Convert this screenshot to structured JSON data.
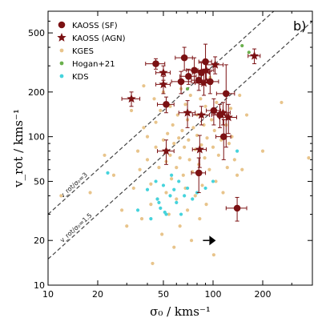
{
  "chart_data": {
    "type": "scatter",
    "panel_tag": "b)",
    "xlabel": "σ₀ / kms⁻¹",
    "ylabel": "v_rot / kms⁻¹",
    "xscale": "log",
    "yscale": "log",
    "xlim": [
      10,
      400
    ],
    "ylim": [
      10,
      700
    ],
    "x_ticks": [
      10,
      20,
      50,
      100,
      200
    ],
    "y_ticks": [
      10,
      20,
      50,
      100,
      200,
      500
    ],
    "grid": false,
    "legend": "top-left",
    "reference_lines": [
      {
        "ratio": 3,
        "label": "v_rot/σ₀=3",
        "style": "dashed"
      },
      {
        "ratio": 1.5,
        "label": "v_rot/σ₀=1.5",
        "style": "dashed"
      }
    ],
    "series": [
      {
        "name": "KGES",
        "marker": "circle-small",
        "color": "#e8c48b",
        "points": [
          [
            12,
            40
          ],
          [
            18,
            42
          ],
          [
            22,
            75
          ],
          [
            25,
            55
          ],
          [
            28,
            32
          ],
          [
            30,
            25
          ],
          [
            32,
            150
          ],
          [
            33,
            45
          ],
          [
            35,
            80
          ],
          [
            36,
            60
          ],
          [
            37,
            28
          ],
          [
            38,
            115
          ],
          [
            38,
            220
          ],
          [
            40,
            70
          ],
          [
            40,
            100
          ],
          [
            42,
            48
          ],
          [
            42,
            35
          ],
          [
            43,
            14
          ],
          [
            44,
            180
          ],
          [
            45,
            125
          ],
          [
            45,
            85
          ],
          [
            46,
            38
          ],
          [
            47,
            62
          ],
          [
            48,
            150
          ],
          [
            49,
            22
          ],
          [
            50,
            95
          ],
          [
            50,
            200
          ],
          [
            52,
            68
          ],
          [
            52,
            42
          ],
          [
            53,
            105
          ],
          [
            54,
            30
          ],
          [
            55,
            75
          ],
          [
            55,
            160
          ],
          [
            56,
            52
          ],
          [
            57,
            120
          ],
          [
            58,
            18
          ],
          [
            58,
            90
          ],
          [
            60,
            62
          ],
          [
            60,
            38
          ],
          [
            61,
            140
          ],
          [
            62,
            98
          ],
          [
            63,
            72
          ],
          [
            63,
            25
          ],
          [
            64,
            210
          ],
          [
            65,
            110
          ],
          [
            66,
            55
          ],
          [
            67,
            85
          ],
          [
            68,
            45
          ],
          [
            68,
            165
          ],
          [
            70,
            32
          ],
          [
            70,
            130
          ],
          [
            71,
            95
          ],
          [
            72,
            70
          ],
          [
            73,
            190
          ],
          [
            74,
            20
          ],
          [
            75,
            58
          ],
          [
            76,
            115
          ],
          [
            78,
            82
          ],
          [
            78,
            40
          ],
          [
            80,
            140
          ],
          [
            80,
            102
          ],
          [
            82,
            65
          ],
          [
            83,
            28
          ],
          [
            84,
            180
          ],
          [
            85,
            88
          ],
          [
            86,
            47
          ],
          [
            88,
            120
          ],
          [
            89,
            72
          ],
          [
            90,
            160
          ],
          [
            91,
            35
          ],
          [
            92,
            98
          ],
          [
            95,
            60
          ],
          [
            96,
            250
          ],
          [
            98,
            130
          ],
          [
            100,
            85
          ],
          [
            101,
            16
          ],
          [
            102,
            110
          ],
          [
            104,
            50
          ],
          [
            105,
            170
          ],
          [
            108,
            75
          ],
          [
            110,
            140
          ],
          [
            112,
            95
          ],
          [
            115,
            42
          ],
          [
            118,
            200
          ],
          [
            120,
            120
          ],
          [
            122,
            62
          ],
          [
            125,
            90
          ],
          [
            128,
            155
          ],
          [
            130,
            100
          ],
          [
            135,
            70
          ],
          [
            140,
            55
          ],
          [
            145,
            190
          ],
          [
            150,
            60
          ],
          [
            160,
            140
          ],
          [
            200,
            80
          ],
          [
            260,
            170
          ],
          [
            380,
            72
          ]
        ]
      },
      {
        "name": "Hogan+21",
        "marker": "circle-small",
        "color": "#6ab04c",
        "points": [
          [
            70,
            210
          ],
          [
            150,
            410
          ],
          [
            165,
            370
          ]
        ]
      },
      {
        "name": "KDS",
        "marker": "circle-small",
        "color": "#45d3dc",
        "points": [
          [
            23,
            57
          ],
          [
            35,
            32
          ],
          [
            40,
            44
          ],
          [
            42,
            28
          ],
          [
            45,
            50
          ],
          [
            46,
            38
          ],
          [
            47,
            36
          ],
          [
            48,
            33
          ],
          [
            50,
            47
          ],
          [
            51,
            31
          ],
          [
            52,
            30
          ],
          [
            55,
            40
          ],
          [
            56,
            55
          ],
          [
            58,
            44
          ],
          [
            60,
            36
          ],
          [
            62,
            50
          ],
          [
            64,
            30
          ],
          [
            67,
            40
          ],
          [
            70,
            45
          ],
          [
            75,
            38
          ],
          [
            80,
            42
          ],
          [
            90,
            45
          ],
          [
            100,
            50
          ],
          [
            140,
            80
          ]
        ]
      },
      {
        "name": "KAOSS (SF)",
        "marker": "circle",
        "color": "#7b1113",
        "points": [
          {
            "x": 45,
            "y": 310,
            "xerr": [
              6,
              6
            ],
            "yerr": [
              25,
              25
            ]
          },
          {
            "x": 52,
            "y": 165,
            "xerr": [
              6,
              6
            ],
            "yerr": [
              20,
              20
            ]
          },
          {
            "x": 64,
            "y": 235,
            "xerr": [
              8,
              10
            ],
            "yerr": [
              40,
              40
            ]
          },
          {
            "x": 67,
            "y": 340,
            "xerr": [
              8,
              8
            ],
            "yerr": [
              60,
              60
            ]
          },
          {
            "x": 71,
            "y": 255,
            "xerr": [
              8,
              8
            ],
            "yerr": [
              30,
              30
            ]
          },
          {
            "x": 77,
            "y": 280,
            "xerr": [
              8,
              8
            ],
            "yerr": [
              50,
              60
            ]
          },
          {
            "x": 82,
            "y": 240,
            "xerr": [
              8,
              10
            ],
            "yerr": [
              35,
              35
            ]
          },
          {
            "x": 85,
            "y": 270,
            "xerr": [
              10,
              10
            ],
            "yerr": [
              45,
              45
            ]
          },
          {
            "x": 90,
            "y": 320,
            "xerr": [
              8,
              8
            ],
            "yerr": [
              90,
              100
            ]
          },
          {
            "x": 96,
            "y": 235,
            "xerr": [
              10,
              12
            ],
            "yerr": [
              40,
              40
            ]
          },
          {
            "x": 101,
            "y": 150,
            "xerr": [
              10,
              10
            ],
            "yerr": [
              30,
              30
            ]
          },
          {
            "x": 110,
            "y": 140,
            "xerr": [
              12,
              12
            ],
            "yerr": [
              25,
              25
            ]
          },
          {
            "x": 116,
            "y": 100,
            "xerr": [
              12,
              12
            ],
            "yerr": [
              30,
              30
            ]
          },
          {
            "x": 120,
            "y": 195,
            "xerr": [
              15,
              15
            ],
            "yerr": [
              110,
              110
            ]
          },
          {
            "x": 82,
            "y": 57,
            "xerr": [
              8,
              8
            ],
            "yerr": [
              15,
              15
            ]
          },
          {
            "x": 140,
            "y": 33,
            "xerr": [
              20,
              20
            ],
            "yerr": [
              6,
              6
            ]
          }
        ]
      },
      {
        "name": "KAOSS (AGN)",
        "marker": "star",
        "color": "#7b1113",
        "points": [
          {
            "x": 32,
            "y": 180,
            "xerr": [
              4,
              4
            ],
            "yerr": [
              20,
              20
            ]
          },
          {
            "x": 50,
            "y": 270,
            "xerr": [
              5,
              5
            ],
            "yerr": [
              30,
              30
            ]
          },
          {
            "x": 50,
            "y": 225,
            "xerr": [
              5,
              5
            ],
            "yerr": [
              30,
              30
            ]
          },
          {
            "x": 52,
            "y": 80,
            "xerr": [
              6,
              6
            ],
            "yerr": [
              15,
              15
            ]
          },
          {
            "x": 70,
            "y": 145,
            "xerr": [
              8,
              8
            ],
            "yerr": [
              30,
              30
            ]
          },
          {
            "x": 83,
            "y": 82,
            "xerr": [
              8,
              8
            ],
            "yerr": [
              20,
              20
            ]
          },
          {
            "x": 85,
            "y": 140,
            "xerr": [
              10,
              10
            ],
            "yerr": [
              20,
              20
            ]
          },
          {
            "x": 88,
            "y": 230,
            "xerr": [
              10,
              10
            ],
            "yerr": [
              40,
              40
            ]
          },
          {
            "x": 91,
            "y": 280,
            "xerr": [
              10,
              10
            ],
            "yerr": [
              40,
              40
            ]
          },
          {
            "x": 103,
            "y": 305,
            "xerr": [
              12,
              12
            ],
            "yerr": [
              40,
              40
            ]
          },
          {
            "x": 115,
            "y": 145,
            "xerr": [
              12,
              12
            ],
            "yerr": [
              25,
              25
            ]
          },
          {
            "x": 124,
            "y": 135,
            "xerr": [
              15,
              15
            ],
            "yerr": [
              30,
              30
            ]
          },
          {
            "x": 178,
            "y": 350,
            "xerr": [
              15,
              15
            ],
            "yerr": [
              40,
              40
            ]
          }
        ]
      }
    ],
    "annotations": [
      {
        "type": "arrow-right",
        "x": 95,
        "y": 20
      }
    ]
  }
}
